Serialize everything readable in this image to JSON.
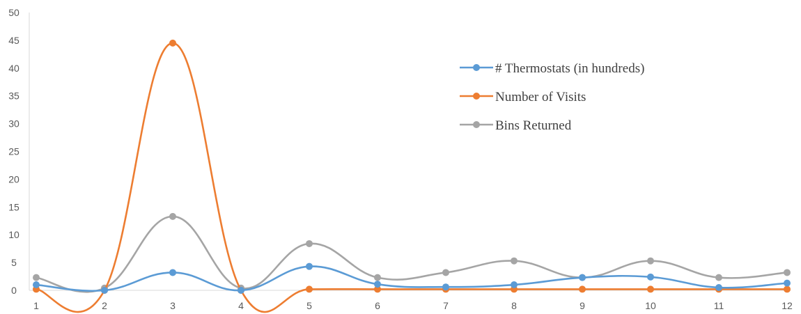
{
  "chart_data": {
    "type": "line",
    "smooth": true,
    "x": [
      1,
      2,
      3,
      4,
      5,
      6,
      7,
      8,
      9,
      10,
      11,
      12
    ],
    "ylim": [
      0,
      50
    ],
    "yticks": [
      0,
      5,
      10,
      15,
      20,
      25,
      30,
      35,
      40,
      45,
      50
    ],
    "grid": false,
    "legend_position": "right",
    "series": [
      {
        "name": "# Thermostats (in hundreds)",
        "color": "#5B9BD5",
        "values": [
          1.0,
          0,
          3.2,
          0,
          4.3,
          1.1,
          0.6,
          1.0,
          2.3,
          2.4,
          0.5,
          1.3
        ]
      },
      {
        "name": "Number of Visits",
        "color": "#ED7D31",
        "values": [
          0.2,
          0,
          44.5,
          0,
          0.2,
          0.2,
          0.2,
          0.2,
          0.2,
          0.2,
          0.2,
          0.2
        ]
      },
      {
        "name": "Bins Returned",
        "color": "#A5A5A5",
        "values": [
          2.3,
          0.4,
          13.3,
          0.4,
          8.4,
          2.3,
          3.2,
          5.3,
          2.3,
          5.3,
          2.3,
          3.2
        ]
      }
    ]
  }
}
